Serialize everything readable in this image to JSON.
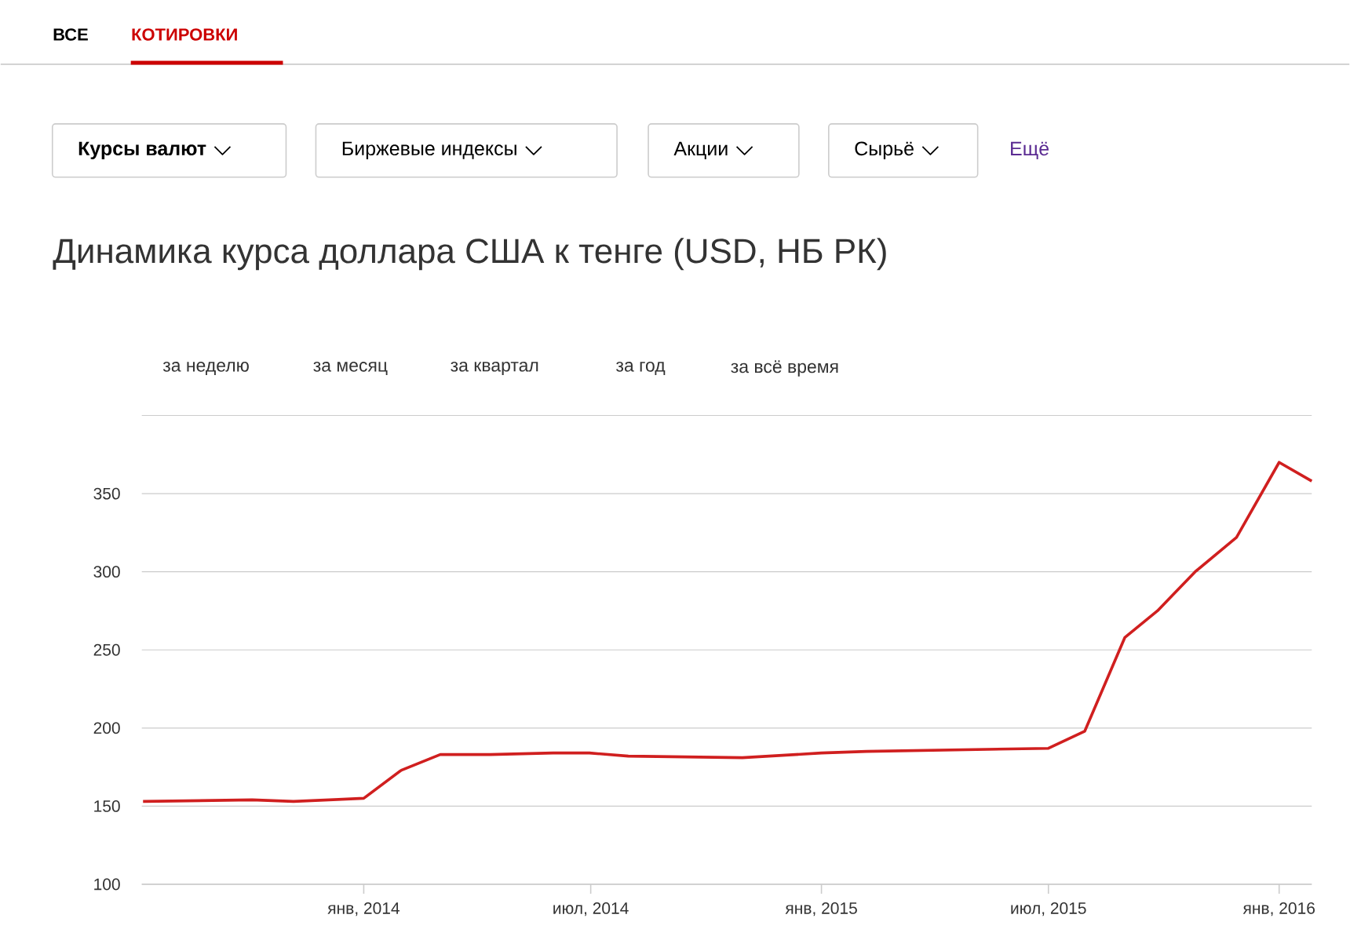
{
  "chart_data": {
    "type": "line",
    "title": "Динамика курса доллара США к тенге (USD, НБ РК)",
    "annotations": [
      "ВСЕ",
      "КОТИРОВКИ",
      "Курсы валют",
      "Биржевые индексы",
      "Акции",
      "Сырьё",
      "Ещё",
      "за неделю",
      "за месяц",
      "за квартал",
      "за год",
      "за всё время"
    ],
    "x": [
      "2013-07-09",
      "2013-10-04",
      "2013-11-06",
      "2014-01-01",
      "2014-01-31",
      "2014-03-03",
      "2014-04-12",
      "2014-06-01",
      "2014-06-30",
      "2014-07-31",
      "2014-10-30",
      "2015-01-01",
      "2015-02-06",
      "2015-07-01",
      "2015-07-30",
      "2015-08-31",
      "2015-09-26",
      "2015-10-26",
      "2015-11-28",
      "2016-01-01",
      "2016-01-27"
    ],
    "series": [
      {
        "color": "#d01f1f",
        "values": [
          153,
          154,
          153,
          155,
          173,
          183,
          183,
          184,
          184,
          182,
          181,
          184,
          185,
          187,
          198,
          258,
          275,
          300,
          322,
          370,
          358
        ]
      }
    ],
    "xlim": [
      "2013-07-08",
      "2016-01-27"
    ],
    "xticks": [
      {
        "value": "2014-01-01",
        "label": "янв, 2014"
      },
      {
        "value": "2014-07-01",
        "label": "июл, 2014"
      },
      {
        "value": "2015-01-01",
        "label": "янв, 2015"
      },
      {
        "value": "2015-07-01",
        "label": "июл, 2015"
      },
      {
        "value": "2016-01-01",
        "label": "янв, 2016"
      }
    ],
    "ylim": [
      100,
      400
    ],
    "yticks": [
      100,
      150,
      200,
      250,
      300,
      350,
      {
        "value": 400,
        "label": null
      }
    ],
    "grid": "y",
    "marker": "none",
    "line_style": "solid"
  }
}
